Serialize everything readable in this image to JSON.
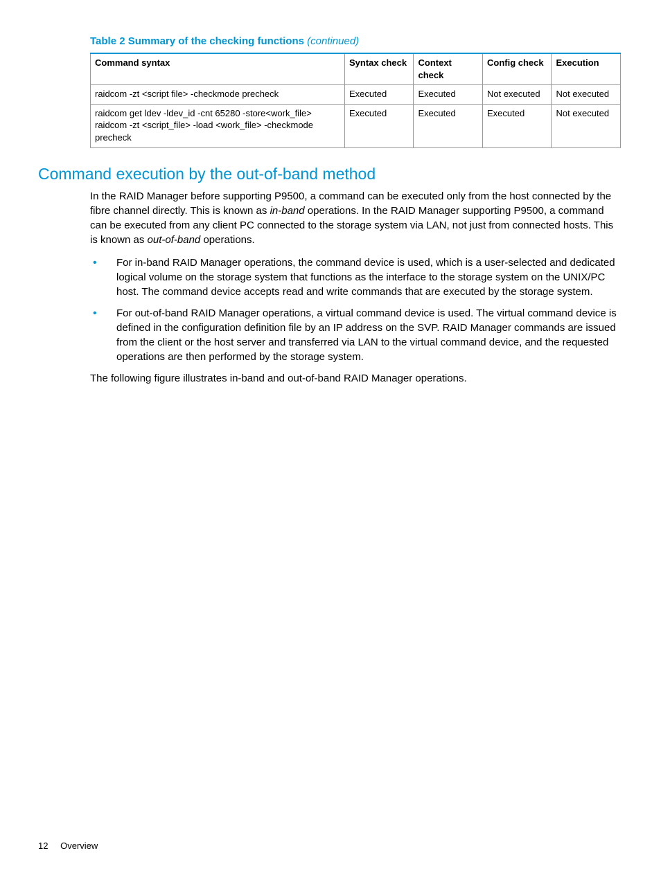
{
  "table_caption": {
    "title": "Table 2 Summary of the checking functions",
    "suffix": "(continued)"
  },
  "table": {
    "columns": [
      "Command syntax",
      "Syntax check",
      "Context check",
      "Config check",
      "Execution"
    ],
    "rows": [
      {
        "cmd": [
          "raidcom -zt <script file> -checkmode precheck"
        ],
        "cells": [
          "Executed",
          "Executed",
          "Not executed",
          "Not executed"
        ]
      },
      {
        "cmd": [
          "raidcom get ldev -ldev_id -cnt 65280 -store<work_file>",
          "raidcom -zt <script_file> -load <work_file> -checkmode precheck"
        ],
        "cells": [
          "Executed",
          "Executed",
          "Executed",
          "Not executed"
        ]
      }
    ]
  },
  "section_heading": "Command execution by the out-of-band method",
  "intro_pre": "In the RAID Manager before supporting P9500, a command can be executed only from the host connected by the fibre channel directly. This is known as ",
  "intro_it1": "in-band",
  "intro_mid": " operations. In the RAID Manager supporting P9500, a command can be executed from any client PC connected to the storage system via LAN, not just from connected hosts. This is known as ",
  "intro_it2": "out-of-band",
  "intro_post": " operations.",
  "bullets": [
    "For in-band RAID Manager operations, the command device is used, which is a user-selected and dedicated logical volume on the storage system that functions as the interface to the storage system on the UNIX/PC host. The command device accepts read and write commands that are executed by the storage system.",
    "For out-of-band RAID Manager operations, a virtual command device is used. The virtual command device is defined in the configuration definition file by an IP address on the SVP. RAID Manager commands are issued from the client or the host server and transferred via LAN to the virtual command device, and the requested operations are then performed by the storage system."
  ],
  "closing": "The following figure illustrates in-band and out-of-band RAID Manager operations.",
  "footer": {
    "page": "12",
    "section": "Overview"
  }
}
